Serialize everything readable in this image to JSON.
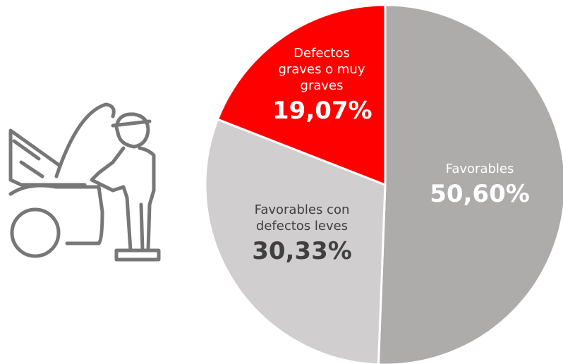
{
  "chart_data": {
    "type": "pie",
    "categories": [
      "Favorables",
      "Favorables con defectos leves",
      "Defectos graves o muy graves"
    ],
    "values": [
      50.6,
      30.33,
      19.07
    ],
    "value_labels": [
      "50,60%",
      "30,33%",
      "19,07%"
    ],
    "colors": [
      "#aeabab",
      "#d0cece",
      "#ff0000"
    ]
  }
}
